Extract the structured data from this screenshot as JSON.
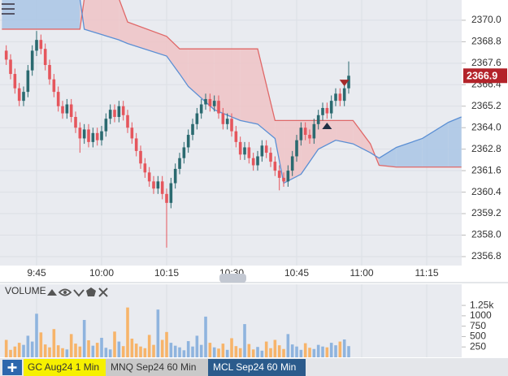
{
  "chart_data": [
    {
      "type": "candlestick",
      "x": [
        38,
        39,
        40,
        41,
        42,
        43,
        44,
        45,
        46,
        47,
        48,
        49,
        50,
        51,
        52,
        53,
        54,
        55,
        56,
        57,
        58,
        59,
        60,
        61,
        62,
        63,
        64,
        65,
        66,
        67,
        68,
        69,
        70,
        71,
        72,
        73,
        74,
        75,
        76,
        77,
        78,
        79,
        80,
        81,
        82,
        83,
        84,
        85,
        86,
        87,
        88,
        89,
        90,
        91,
        92,
        93,
        94,
        95,
        96,
        97,
        98,
        99,
        100,
        101,
        102,
        103,
        104,
        105,
        106,
        107,
        108,
        109,
        110,
        111,
        112,
        113,
        114,
        115,
        116,
        117
      ],
      "series": [
        {
          "open": [
            2368.3,
            2367.8,
            2367.0,
            2366.2,
            2365.5,
            2366.0,
            2367.2,
            2368.3,
            2368.9,
            2368.4,
            2367.5,
            2366.7,
            2366.0,
            2365.2,
            2364.8,
            2365.3,
            2364.6,
            2364.0,
            2363.4,
            2363.9,
            2363.2,
            2363.7,
            2363.3,
            2363.8,
            2364.5,
            2365.0,
            2364.6,
            2365.2,
            2364.7,
            2364.0,
            2363.4,
            2362.7,
            2362.0,
            2361.5,
            2361.0,
            2360.6,
            2361.0,
            2360.3,
            2359.8,
            2360.9,
            2361.7,
            2362.3,
            2362.9,
            2363.6,
            2364.2,
            2364.8,
            2365.3,
            2365.6,
            2365.2,
            2365.5,
            2364.8,
            2364.2,
            2364.5,
            2363.8,
            2363.2,
            2362.5,
            2362.9,
            2362.3,
            2361.9,
            2362.4,
            2363.0,
            2362.6,
            2362.1,
            2361.6,
            2361.2,
            2361.0,
            2361.6,
            2362.4,
            2363.3,
            2364.0,
            2363.6,
            2363.4,
            2364.2,
            2364.7,
            2365.1,
            2364.8,
            2365.5,
            2365.9,
            2365.5,
            2366.2
          ],
          "high": [
            2368.6,
            2368.1,
            2367.3,
            2366.5,
            2366.3,
            2367.5,
            2368.6,
            2369.4,
            2369.2,
            2368.7,
            2367.8,
            2367.0,
            2366.3,
            2365.5,
            2365.6,
            2365.6,
            2364.9,
            2364.3,
            2364.2,
            2364.2,
            2364.0,
            2364.0,
            2364.1,
            2364.8,
            2365.3,
            2365.3,
            2365.5,
            2365.5,
            2365.0,
            2364.3,
            2363.7,
            2363.0,
            2362.3,
            2361.8,
            2361.3,
            2361.3,
            2361.3,
            2360.6,
            2361.2,
            2362.0,
            2362.6,
            2363.2,
            2363.9,
            2364.5,
            2365.1,
            2365.6,
            2365.9,
            2365.9,
            2365.8,
            2365.8,
            2365.1,
            2364.8,
            2364.8,
            2364.1,
            2363.5,
            2363.2,
            2363.2,
            2362.6,
            2362.7,
            2363.3,
            2363.3,
            2362.9,
            2362.4,
            2361.9,
            2361.5,
            2361.9,
            2362.7,
            2363.6,
            2364.3,
            2364.3,
            2363.9,
            2364.5,
            2365.0,
            2365.4,
            2365.4,
            2365.8,
            2366.2,
            2366.2,
            2366.5,
            2367.7
          ],
          "low": [
            2367.5,
            2366.7,
            2365.9,
            2365.2,
            2365.2,
            2365.7,
            2366.9,
            2368.0,
            2368.1,
            2367.2,
            2366.4,
            2365.7,
            2364.9,
            2364.5,
            2364.5,
            2364.3,
            2363.7,
            2362.6,
            2363.1,
            2362.9,
            2362.9,
            2363.0,
            2363.0,
            2363.5,
            2364.2,
            2364.3,
            2364.3,
            2364.4,
            2363.7,
            2363.1,
            2362.4,
            2361.7,
            2361.2,
            2360.7,
            2360.3,
            2360.3,
            2360.0,
            2357.3,
            2359.5,
            2360.6,
            2361.4,
            2362.0,
            2362.6,
            2363.3,
            2363.9,
            2364.5,
            2365.0,
            2364.9,
            2364.9,
            2364.5,
            2363.9,
            2363.9,
            2363.5,
            2362.9,
            2362.2,
            2362.2,
            2362.0,
            2361.6,
            2361.6,
            2362.1,
            2362.3,
            2361.8,
            2361.3,
            2360.5,
            2360.7,
            2360.7,
            2361.3,
            2362.1,
            2363.0,
            2363.3,
            2363.1,
            2363.1,
            2363.9,
            2364.4,
            2364.5,
            2364.5,
            2365.2,
            2365.2,
            2365.2,
            2365.9
          ],
          "close": [
            2367.8,
            2367.0,
            2366.2,
            2365.5,
            2366.0,
            2367.2,
            2368.3,
            2368.9,
            2368.4,
            2367.5,
            2366.7,
            2366.0,
            2365.2,
            2364.8,
            2365.3,
            2364.6,
            2364.0,
            2363.4,
            2363.9,
            2363.2,
            2363.7,
            2363.3,
            2363.8,
            2364.5,
            2365.0,
            2364.6,
            2365.2,
            2364.7,
            2364.0,
            2363.4,
            2362.7,
            2362.0,
            2361.5,
            2361.0,
            2360.6,
            2361.0,
            2360.3,
            2359.8,
            2360.9,
            2361.7,
            2362.3,
            2362.9,
            2363.6,
            2364.2,
            2364.8,
            2365.3,
            2365.6,
            2365.2,
            2365.5,
            2364.8,
            2364.2,
            2364.5,
            2363.8,
            2363.2,
            2362.5,
            2362.9,
            2362.3,
            2361.9,
            2362.4,
            2363.0,
            2362.6,
            2362.1,
            2361.6,
            2361.2,
            2361.0,
            2361.6,
            2362.4,
            2363.3,
            2364.0,
            2363.6,
            2363.4,
            2364.2,
            2364.7,
            2365.1,
            2364.8,
            2365.5,
            2365.9,
            2365.5,
            2366.2,
            2366.9
          ]
        }
      ],
      "up_color": "#2b6a70",
      "down_color": "#e5565d",
      "cloud": {
        "x": [
          37,
          55,
          56,
          64,
          66,
          75,
          78,
          80,
          86,
          92,
          96,
          100,
          102,
          106,
          110,
          114,
          118,
          122,
          124,
          128,
          134,
          140,
          143
        ],
        "span_a": [
          2369.5,
          2369.5,
          2371.2,
          2371.2,
          2369.9,
          2369.1,
          2368.4,
          2368.4,
          2368.4,
          2368.4,
          2368.4,
          2364.4,
          2364.4,
          2364.4,
          2364.4,
          2364.4,
          2364.4,
          2363.1,
          2361.9,
          2361.8,
          2361.8,
          2361.8,
          2361.8
        ],
        "span_b": [
          2371.2,
          2371.2,
          2369.5,
          2368.9,
          2368.7,
          2368.0,
          2367.0,
          2366.3,
          2365.0,
          2364.4,
          2364.2,
          2363.4,
          2360.9,
          2361.4,
          2362.8,
          2363.3,
          2363.1,
          2362.6,
          2362.3,
          2362.9,
          2363.4,
          2364.3,
          2364.6
        ],
        "span_a_color": "#e06868",
        "span_b_color": "#5b8fd4",
        "fill_colors": [
          "#efc3c5",
          "#a9c6e5"
        ]
      },
      "markers": [
        {
          "x": 116,
          "y": 2366.5,
          "direction": "down",
          "color": "#a52a2a"
        },
        {
          "x": 112,
          "y": 2364.1,
          "direction": "up",
          "color": "#1f2f44"
        }
      ],
      "last_price_color": "#b3232a",
      "xlim": [
        36.56,
        143.06
      ],
      "xticks": [
        {
          "value": 45,
          "label": "9:45"
        },
        {
          "value": 60,
          "label": "10:00"
        },
        {
          "value": 75,
          "label": "10:15"
        },
        {
          "value": 90,
          "label": "10:30"
        },
        {
          "value": 105,
          "label": "10:45"
        },
        {
          "value": 120,
          "label": "11:00"
        },
        {
          "value": 135,
          "label": "11:15"
        }
      ],
      "ylim": [
        2356.3,
        2371.13
      ],
      "yticks": [
        {
          "value": 2370.0,
          "label": "2370.0"
        },
        2368.8,
        2367.6,
        2366.4,
        2365.2,
        {
          "value": 2364.0,
          "label": "2364.0"
        },
        2362.8,
        2361.6,
        2360.4,
        2359.2,
        {
          "value": 2358.0,
          "label": "2358.0"
        },
        2356.8
      ],
      "grid": true
    },
    {
      "type": "bar",
      "title": "VOLUME",
      "values": [
        420,
        180,
        260,
        350,
        300,
        520,
        380,
        1050,
        600,
        310,
        240,
        680,
        290,
        220,
        190,
        560,
        330,
        260,
        900,
        410,
        280,
        350,
        470,
        230,
        190,
        620,
        380,
        270,
        1200,
        450,
        330,
        260,
        220,
        540,
        300,
        1150,
        420,
        610,
        350,
        280,
        240,
        170,
        390,
        260,
        520,
        300,
        980,
        350,
        240,
        210,
        330,
        180,
        460,
        270,
        220,
        800,
        320,
        190,
        250,
        160,
        380,
        220,
        420,
        290,
        200,
        560,
        310,
        260,
        180,
        340,
        230,
        200,
        300,
        260,
        240,
        350,
        290,
        380,
        430,
        270
      ],
      "up_color": "#8fb4de",
      "down_color": "#f7b46a",
      "ylim": [
        0,
        1760
      ],
      "yticks": [
        250,
        500,
        750,
        1000,
        {
          "value": 1250,
          "label": "1.25k"
        }
      ]
    }
  ],
  "ui": {
    "tabs": [
      "GC Aug24 1 Min",
      "MNQ Sep24 60 Min",
      "MCL Sep24 60 Min"
    ]
  }
}
